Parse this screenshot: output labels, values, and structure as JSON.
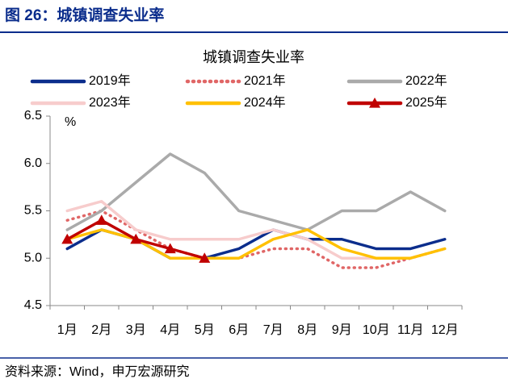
{
  "header": "图 26：城镇调查失业率",
  "source": "资料来源：Wind，申万宏源研究",
  "chart_data": {
    "type": "line",
    "title": "城镇调查失业率",
    "y_label": "%",
    "categories": [
      "1月",
      "2月",
      "3月",
      "4月",
      "5月",
      "6月",
      "7月",
      "8月",
      "9月",
      "10月",
      "11月",
      "12月"
    ],
    "series": [
      {
        "name": "2019年",
        "color": "#0b2d8c",
        "style": "solid",
        "values": [
          5.1,
          5.3,
          5.2,
          5.0,
          5.0,
          5.1,
          5.3,
          5.2,
          5.2,
          5.1,
          5.1,
          5.2
        ]
      },
      {
        "name": "2021年",
        "color": "#e06666",
        "style": "dotted",
        "values": [
          5.4,
          5.5,
          5.3,
          5.1,
          5.0,
          5.0,
          5.1,
          5.1,
          4.9,
          4.9,
          5.0,
          5.1
        ]
      },
      {
        "name": "2022年",
        "color": "#aaaaaa",
        "style": "solid",
        "values": [
          5.3,
          5.5,
          5.8,
          6.1,
          5.9,
          5.5,
          5.4,
          5.3,
          5.5,
          5.5,
          5.7,
          5.5
        ]
      },
      {
        "name": "2023年",
        "color": "#f7cccc",
        "style": "solid",
        "values": [
          5.5,
          5.6,
          5.3,
          5.2,
          5.2,
          5.2,
          5.3,
          5.2,
          5.0,
          5.0,
          5.0,
          5.1
        ]
      },
      {
        "name": "2024年",
        "color": "#ffc000",
        "style": "solid",
        "values": [
          5.2,
          5.3,
          5.2,
          5.0,
          5.0,
          5.0,
          5.2,
          5.3,
          5.1,
          5.0,
          5.0,
          5.1
        ]
      },
      {
        "name": "2025年",
        "color": "#c00000",
        "style": "solid",
        "marker": "triangle",
        "values": [
          5.2,
          5.4,
          5.2,
          5.1,
          5.0,
          null,
          null,
          null,
          null,
          null,
          null,
          null
        ]
      }
    ],
    "ylim": [
      4.5,
      6.5
    ],
    "yticks": [
      4.5,
      {
        "value": 5.0,
        "label": "5.0"
      },
      5.5,
      {
        "value": 6.0,
        "label": "6.0"
      },
      6.5
    ],
    "grid": false,
    "legend": "top"
  }
}
